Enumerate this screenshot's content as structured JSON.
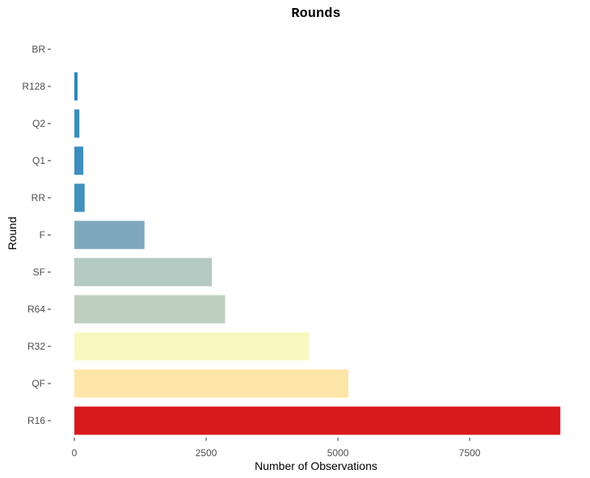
{
  "chart_data": {
    "type": "bar",
    "orientation": "horizontal",
    "title": "Rounds",
    "xlabel": "Number of Observations",
    "ylabel": "Round",
    "xlim": [
      0,
      9200
    ],
    "xticks": [
      0,
      2500,
      5000,
      7500
    ],
    "grid": false,
    "categories": [
      "BR",
      "R128",
      "Q2",
      "Q1",
      "RR",
      "F",
      "SF",
      "R64",
      "R32",
      "QF",
      "R16"
    ],
    "values": [
      0,
      60,
      95,
      170,
      195,
      1330,
      2610,
      2860,
      4450,
      5200,
      9220
    ],
    "colors": [
      "#2b83ba",
      "#2b83ba",
      "#3b8dbd",
      "#3f8dbe",
      "#4290be",
      "#7fa8bf",
      "#b4c9c2",
      "#bfcfbe",
      "#f8f8c0",
      "#fee5a8",
      "#d7191c"
    ]
  }
}
